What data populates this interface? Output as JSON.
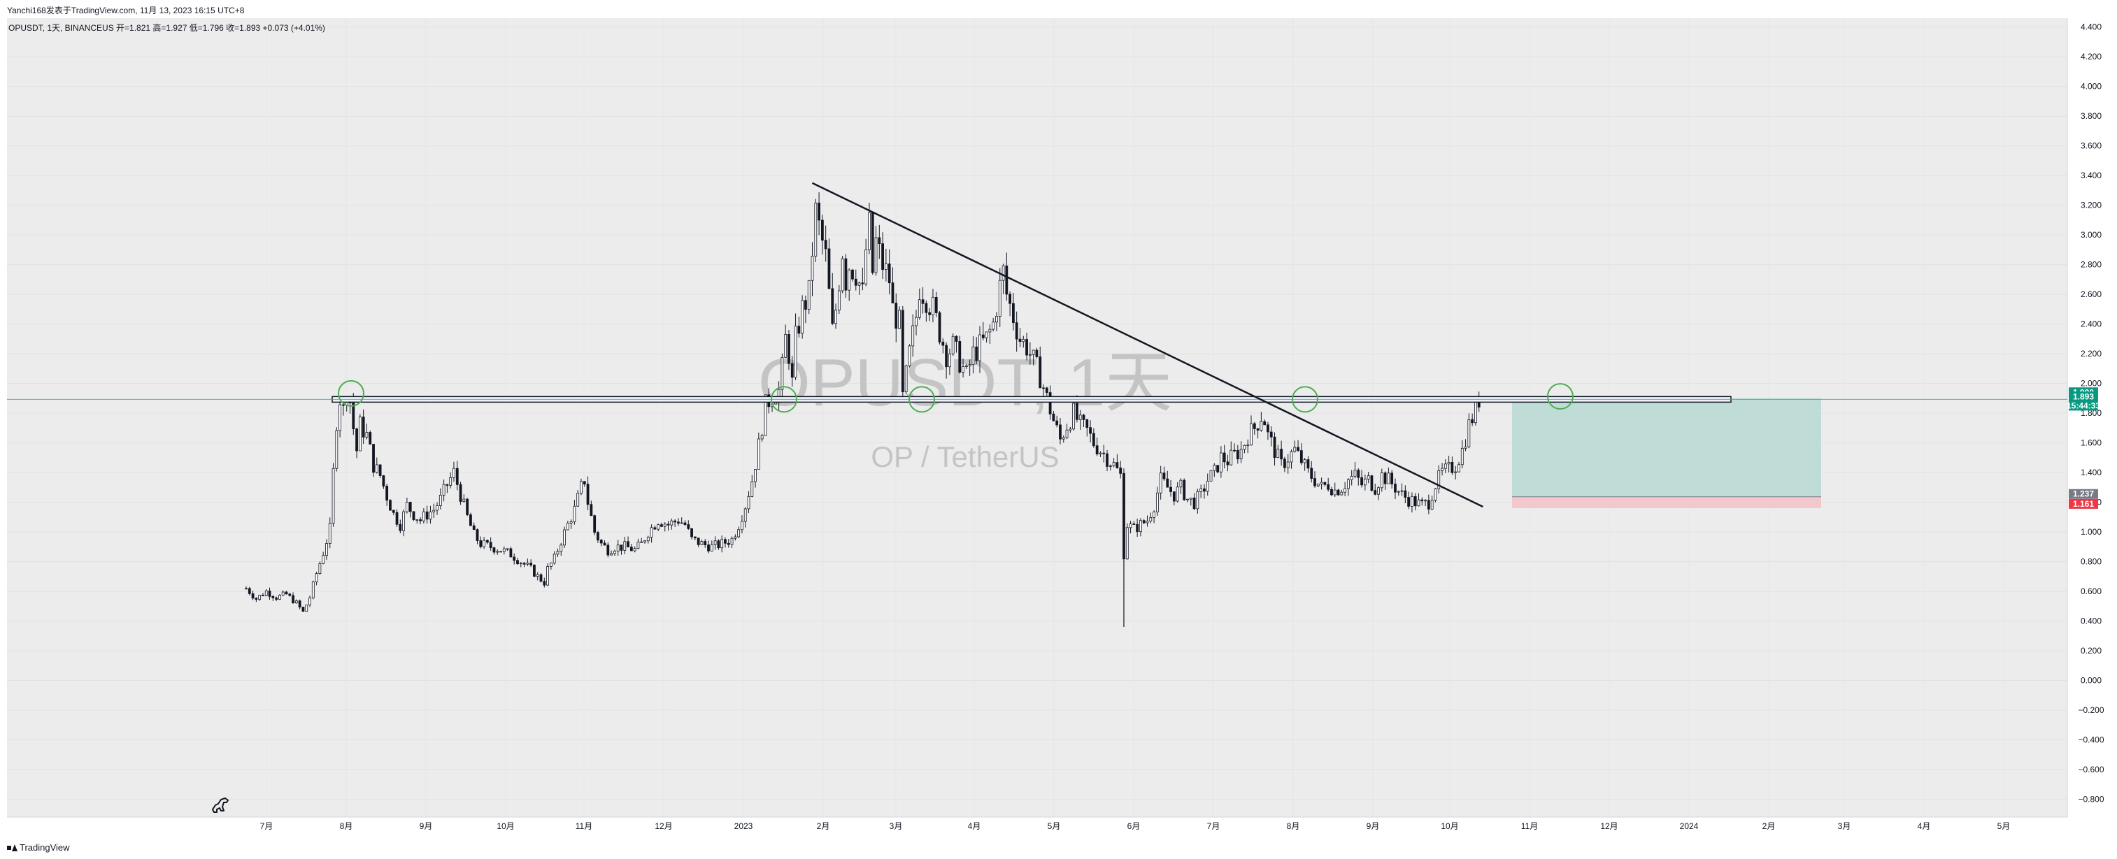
{
  "caption": "Yanchi168发表于TradingView.com, 11月 13, 2023 16:15 UTC+8",
  "legend_line": "OPUSDT, 1天, BINANCEUS  开=1.821  高=1.927  低=1.796  收=1.893  +0.073 (+4.01%)",
  "watermark": {
    "title": "OPUSDT, 1天",
    "subtitle": "OP / TetherUS"
  },
  "footer_logo": "TradingView",
  "colors": {
    "up": "#089981",
    "down": "#f23645",
    "candle": "#131722",
    "profit_zone": "#bfddd6",
    "loss_zone": "#f3c8cc",
    "price_line": "#26a69a"
  },
  "chart_data": {
    "type": "candlestick",
    "symbol": "OPUSDT",
    "interval": "1天",
    "exchange": "BINANCEUS",
    "ohlc_last": {
      "open": 1.821,
      "high": 1.927,
      "low": 1.796,
      "close": 1.893,
      "change": 0.073,
      "change_pct": 4.01
    },
    "y_axis": {
      "ticks": [
        "4.400",
        "4.200",
        "4.000",
        "3.800",
        "3.600",
        "3.400",
        "3.200",
        "3.000",
        "2.800",
        "2.600",
        "2.400",
        "2.200",
        "2.000",
        "1.800",
        "1.600",
        "1.400",
        "1.200",
        "1.000",
        "0.800",
        "0.600",
        "0.400",
        "0.200",
        "0.000",
        "−0.200",
        "−0.400",
        "−0.600",
        "−0.800"
      ],
      "ylim": [
        -0.92,
        4.46
      ]
    },
    "x_axis": {
      "ticks": [
        "7月",
        "8月",
        "9月",
        "10月",
        "11月",
        "12月",
        "2023",
        "2月",
        "3月",
        "4月",
        "5月",
        "6月",
        "7月",
        "8月",
        "9月",
        "10月",
        "11月",
        "12月",
        "2024",
        "2月",
        "3月",
        "4月",
        "5月"
      ]
    },
    "close_path": [
      [
        0,
        0.62
      ],
      [
        3,
        0.55
      ],
      [
        6,
        0.6
      ],
      [
        9,
        0.56
      ],
      [
        12,
        0.58
      ],
      [
        15,
        0.52
      ],
      [
        17,
        0.46
      ],
      [
        19,
        0.56
      ],
      [
        21,
        0.72
      ],
      [
        23,
        0.86
      ],
      [
        25,
        1.02
      ],
      [
        26,
        1.4
      ],
      [
        27,
        1.75
      ],
      [
        28,
        1.9
      ],
      [
        29,
        1.82
      ],
      [
        30,
        1.95
      ],
      [
        31,
        1.88
      ],
      [
        32,
        1.7
      ],
      [
        33,
        1.55
      ],
      [
        34,
        1.72
      ],
      [
        36,
        1.65
      ],
      [
        38,
        1.45
      ],
      [
        40,
        1.38
      ],
      [
        42,
        1.24
      ],
      [
        44,
        1.12
      ],
      [
        46,
        1.05
      ],
      [
        48,
        1.18
      ],
      [
        50,
        1.12
      ],
      [
        52,
        1.08
      ],
      [
        54,
        1.12
      ],
      [
        56,
        1.15
      ],
      [
        58,
        1.22
      ],
      [
        60,
        1.32
      ],
      [
        62,
        1.4
      ],
      [
        64,
        1.25
      ],
      [
        66,
        1.1
      ],
      [
        68,
        0.98
      ],
      [
        70,
        0.92
      ],
      [
        73,
        0.9
      ],
      [
        76,
        0.88
      ],
      [
        79,
        0.85
      ],
      [
        82,
        0.8
      ],
      [
        85,
        0.75
      ],
      [
        87,
        0.7
      ],
      [
        89,
        0.66
      ],
      [
        90,
        0.75
      ],
      [
        92,
        0.82
      ],
      [
        94,
        0.94
      ],
      [
        96,
        1.05
      ],
      [
        98,
        1.15
      ],
      [
        100,
        1.3
      ],
      [
        101,
        1.35
      ],
      [
        102,
        1.2
      ],
      [
        104,
        1.0
      ],
      [
        106,
        0.92
      ],
      [
        108,
        0.88
      ],
      [
        110,
        0.9
      ],
      [
        113,
        0.9
      ],
      [
        116,
        0.88
      ],
      [
        118,
        0.92
      ],
      [
        120,
        1.0
      ],
      [
        123,
        1.08
      ],
      [
        126,
        1.05
      ],
      [
        129,
        1.08
      ],
      [
        131,
        1.05
      ],
      [
        133,
        0.95
      ],
      [
        136,
        0.92
      ],
      [
        139,
        0.9
      ],
      [
        142,
        0.92
      ],
      [
        145,
        0.95
      ],
      [
        147,
        1.05
      ],
      [
        149,
        1.18
      ],
      [
        151,
        1.35
      ],
      [
        153,
        1.58
      ],
      [
        155,
        1.85
      ],
      [
        157,
        1.92
      ],
      [
        159,
        1.95
      ],
      [
        160,
        2.1
      ],
      [
        161,
        2.3
      ],
      [
        162,
        2.2
      ],
      [
        163,
        2.0
      ],
      [
        164,
        2.3
      ],
      [
        165,
        2.4
      ],
      [
        166,
        2.5
      ],
      [
        167,
        2.55
      ],
      [
        168,
        2.6
      ],
      [
        169,
        2.9
      ],
      [
        170,
        3.15
      ],
      [
        171,
        3.05
      ],
      [
        172,
        2.95
      ],
      [
        173,
        2.85
      ],
      [
        174,
        2.6
      ],
      [
        175,
        2.35
      ],
      [
        176,
        2.5
      ],
      [
        177,
        2.7
      ],
      [
        178,
        2.9
      ],
      [
        179,
        2.7
      ],
      [
        180,
        2.8
      ],
      [
        182,
        2.75
      ],
      [
        184,
        2.6
      ],
      [
        185,
        2.9
      ],
      [
        186,
        3.05
      ],
      [
        187,
        2.75
      ],
      [
        188,
        2.95
      ],
      [
        190,
        2.8
      ],
      [
        192,
        2.7
      ],
      [
        193,
        2.5
      ],
      [
        195,
        2.4
      ],
      [
        196,
        1.9
      ],
      [
        197,
        2.05
      ],
      [
        198,
        2.2
      ],
      [
        200,
        2.45
      ],
      [
        201,
        2.65
      ],
      [
        203,
        2.58
      ],
      [
        205,
        2.5
      ],
      [
        207,
        2.35
      ],
      [
        209,
        2.2
      ],
      [
        211,
        2.25
      ],
      [
        213,
        2.15
      ],
      [
        215,
        2.05
      ],
      [
        217,
        2.2
      ],
      [
        219,
        2.25
      ],
      [
        221,
        2.3
      ],
      [
        223,
        2.4
      ],
      [
        225,
        2.65
      ],
      [
        226,
        2.75
      ],
      [
        227,
        2.6
      ],
      [
        229,
        2.45
      ],
      [
        231,
        2.3
      ],
      [
        233,
        2.25
      ],
      [
        235,
        2.15
      ],
      [
        237,
        2.05
      ],
      [
        239,
        1.9
      ],
      [
        241,
        1.75
      ],
      [
        243,
        1.62
      ],
      [
        245,
        1.72
      ],
      [
        247,
        1.8
      ],
      [
        249,
        1.72
      ],
      [
        251,
        1.68
      ],
      [
        253,
        1.6
      ],
      [
        255,
        1.55
      ],
      [
        257,
        1.5
      ],
      [
        259,
        1.45
      ],
      [
        261,
        1.38
      ],
      [
        262,
        0.85
      ],
      [
        263,
        1.05
      ],
      [
        265,
        1.02
      ],
      [
        267,
        1.05
      ],
      [
        269,
        1.08
      ],
      [
        271,
        1.18
      ],
      [
        273,
        1.35
      ],
      [
        275,
        1.3
      ],
      [
        277,
        1.25
      ],
      [
        279,
        1.3
      ],
      [
        281,
        1.22
      ],
      [
        283,
        1.2
      ],
      [
        285,
        1.25
      ],
      [
        287,
        1.35
      ],
      [
        289,
        1.4
      ],
      [
        291,
        1.5
      ],
      [
        293,
        1.48
      ],
      [
        295,
        1.52
      ],
      [
        297,
        1.55
      ],
      [
        299,
        1.65
      ],
      [
        301,
        1.7
      ],
      [
        303,
        1.78
      ],
      [
        304,
        1.75
      ],
      [
        305,
        1.65
      ],
      [
        307,
        1.55
      ],
      [
        309,
        1.45
      ],
      [
        311,
        1.5
      ],
      [
        313,
        1.55
      ],
      [
        315,
        1.48
      ],
      [
        317,
        1.4
      ],
      [
        319,
        1.35
      ],
      [
        321,
        1.3
      ],
      [
        323,
        1.32
      ],
      [
        325,
        1.28
      ],
      [
        327,
        1.3
      ],
      [
        329,
        1.35
      ],
      [
        331,
        1.38
      ],
      [
        333,
        1.32
      ],
      [
        335,
        1.35
      ],
      [
        337,
        1.3
      ],
      [
        339,
        1.38
      ],
      [
        341,
        1.35
      ],
      [
        343,
        1.3
      ],
      [
        345,
        1.25
      ],
      [
        347,
        1.22
      ],
      [
        349,
        1.2
      ],
      [
        351,
        1.18
      ],
      [
        353,
        1.2
      ],
      [
        355,
        1.32
      ],
      [
        357,
        1.4
      ],
      [
        359,
        1.42
      ],
      [
        361,
        1.45
      ],
      [
        363,
        1.55
      ],
      [
        365,
        1.72
      ],
      [
        367,
        1.82
      ],
      [
        368,
        1.893
      ]
    ],
    "resistance_level": 1.893,
    "trendline": {
      "from": {
        "bar": 169,
        "price": 3.35
      },
      "to": {
        "bar": 365,
        "price": 1.17
      }
    },
    "long_position": {
      "entry": 1.237,
      "target": 1.9,
      "stop": 1.161
    },
    "price_tags": [
      {
        "value": "1.900",
        "color": "#089981"
      },
      {
        "value": "1.893",
        "color": "#089981"
      },
      {
        "value": "15:44:33",
        "color": "#089981"
      },
      {
        "value": "1.237",
        "color": "#787b86"
      },
      {
        "value": "1.161",
        "color": "#f23645"
      }
    ]
  }
}
